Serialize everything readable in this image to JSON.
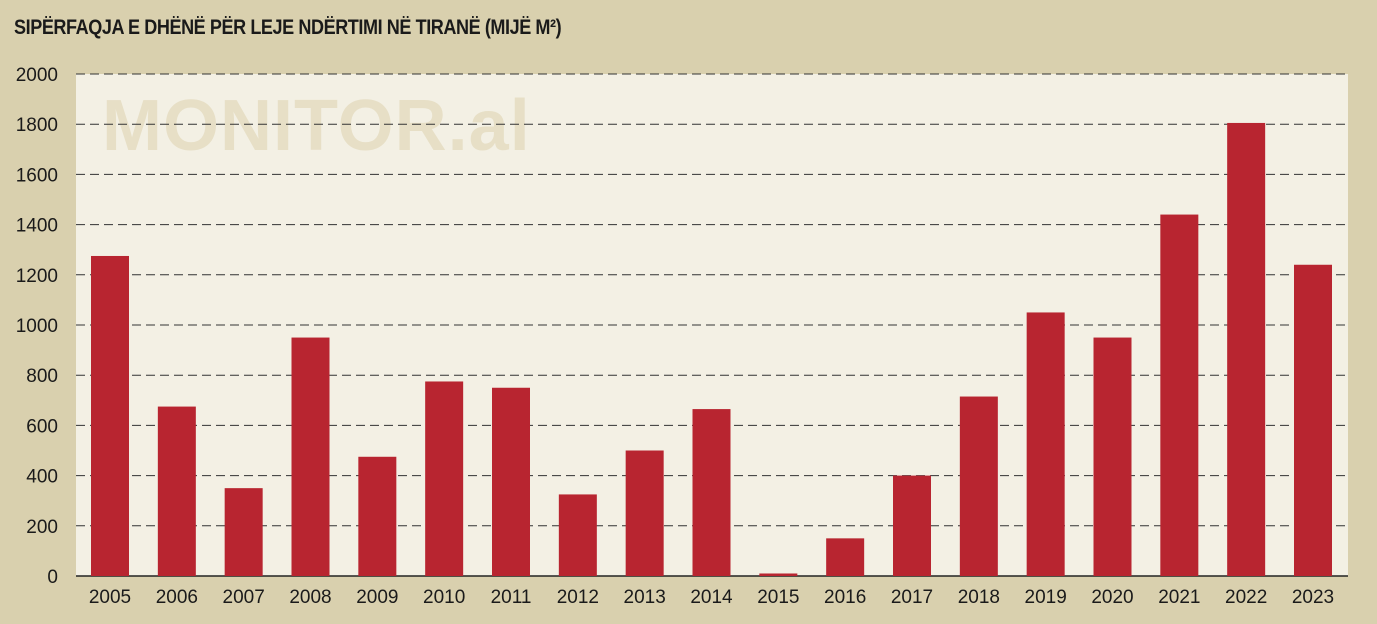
{
  "chart_data": {
    "type": "bar",
    "title": "SIPËRFAQJA E DHËNË PËR LEJE NDËRTIMI NË TIRANË (MIJË M²)",
    "watermark": "MONITOR.al",
    "xlabel": "",
    "ylabel": "",
    "categories": [
      "2005",
      "2006",
      "2007",
      "2008",
      "2009",
      "2010",
      "2011",
      "2012",
      "2013",
      "2014",
      "2015",
      "2016",
      "2017",
      "2018",
      "2019",
      "2020",
      "2021",
      "2022",
      "2023"
    ],
    "values": [
      1275,
      675,
      350,
      950,
      475,
      775,
      750,
      325,
      500,
      665,
      10,
      150,
      400,
      715,
      1050,
      950,
      1440,
      1805,
      1240
    ],
    "ylim": [
      0,
      2000
    ],
    "yticks": [
      0,
      200,
      400,
      600,
      800,
      1000,
      1200,
      1400,
      1600,
      1800,
      2000
    ],
    "grid": true,
    "colors": {
      "bar": "#b82530",
      "plot_bg": "#f3f0e4",
      "page_bg": "#d9d0ae",
      "watermark": "#e7dfc6"
    }
  }
}
